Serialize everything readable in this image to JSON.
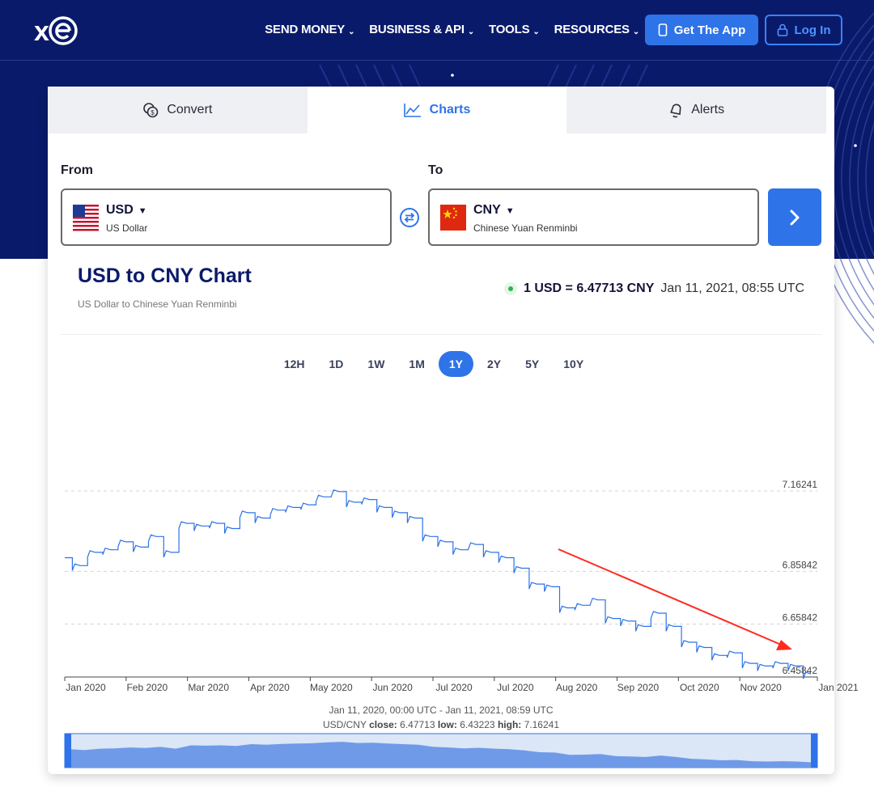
{
  "header": {
    "logo_text": "xe",
    "nav": [
      {
        "label": "SEND MONEY"
      },
      {
        "label": "BUSINESS & API"
      },
      {
        "label": "TOOLS"
      },
      {
        "label": "RESOURCES"
      }
    ],
    "get_app_label": "Get The App",
    "login_label": "Log In",
    "colors": {
      "bg": "#0a1a6b",
      "accent": "#2e73e8"
    }
  },
  "tabs": [
    {
      "label": "Convert",
      "icon": "coins-icon",
      "active": false
    },
    {
      "label": "Charts",
      "icon": "chart-line-icon",
      "active": true
    },
    {
      "label": "Alerts",
      "icon": "bell-icon",
      "active": false
    }
  ],
  "converter": {
    "from_label": "From",
    "to_label": "To",
    "from": {
      "code": "USD",
      "name": "US Dollar",
      "flag": "us-flag-icon"
    },
    "to": {
      "code": "CNY",
      "name": "Chinese Yuan Renminbi",
      "flag": "cn-flag-icon"
    }
  },
  "chart_header": {
    "title": "USD to CNY Chart",
    "subtitle": "US Dollar to Chinese Yuan Renminbi",
    "rate_text": "1 USD = 6.47713 CNY",
    "timestamp": "Jan 11, 2021, 08:55 UTC"
  },
  "ranges": [
    {
      "label": "12H",
      "active": false
    },
    {
      "label": "1D",
      "active": false
    },
    {
      "label": "1W",
      "active": false
    },
    {
      "label": "1M",
      "active": false
    },
    {
      "label": "1Y",
      "active": true
    },
    {
      "label": "2Y",
      "active": false
    },
    {
      "label": "5Y",
      "active": false
    },
    {
      "label": "10Y",
      "active": false
    }
  ],
  "chart_data": {
    "type": "line",
    "series": [
      {
        "values": [
          6.91,
          6.88,
          6.93,
          6.94,
          6.97,
          6.95,
          6.99,
          6.93,
          7.04,
          7.03,
          7.04,
          7.02,
          7.08,
          7.06,
          7.09,
          7.1,
          7.11,
          7.14,
          7.16,
          7.12,
          7.13,
          7.1,
          7.08,
          7.06,
          6.99,
          6.97,
          6.94,
          6.96,
          6.93,
          6.91,
          6.87,
          6.81,
          6.8,
          6.72,
          6.73,
          6.75,
          6.68,
          6.67,
          6.65,
          6.7,
          6.65,
          6.59,
          6.57,
          6.54,
          6.55,
          6.51,
          6.5,
          6.51,
          6.5,
          6.47
        ]
      }
    ],
    "x_labels": [
      "Jan 2020",
      "Feb 2020",
      "Mar 2020",
      "Apr 2020",
      "May 2020",
      "Jun 2020",
      "Jul 2020",
      "Jul 2020",
      "Aug 2020",
      "Sep 2020",
      "Oct 2020",
      "Nov 2020",
      "Jan 2021"
    ],
    "y_ticks": [
      {
        "value": 7.16241,
        "label": "7.16241"
      },
      {
        "value": 6.85842,
        "label": "6.85842"
      },
      {
        "value": 6.65842,
        "label": "6.65842"
      },
      {
        "value": 6.45842,
        "label": "6.45842"
      }
    ],
    "ylim": [
      6.45842,
      7.16241
    ],
    "grid": true,
    "annotation": "downward-trend-arrow",
    "colors": {
      "line": "#2e73e8",
      "arrow": "#ff2a1f",
      "navigator": "#6f9ae8"
    }
  },
  "footer": {
    "range_text": "Jan 11, 2020, 00:00 UTC - Jan 11, 2021, 08:59 UTC",
    "pair": "USD/CNY",
    "close_label": "close:",
    "close_value": "6.47713",
    "low_label": "low:",
    "low_value": "6.43223",
    "high_label": "high:",
    "high_value": "7.16241"
  }
}
